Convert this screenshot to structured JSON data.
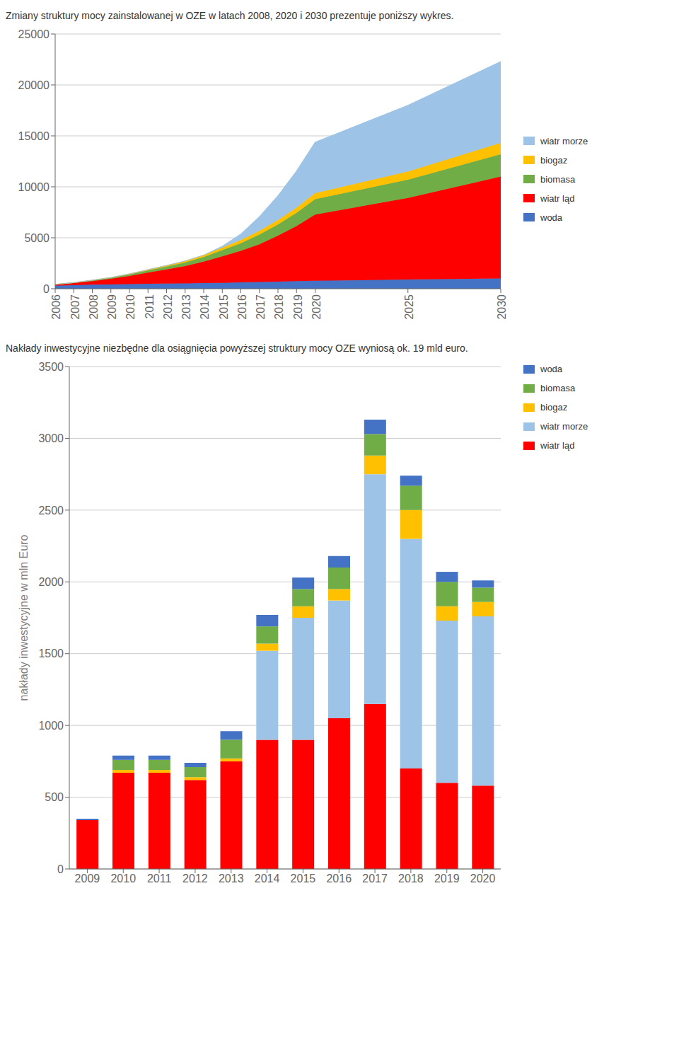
{
  "chart_data": [
    {
      "type": "area",
      "title": "Zmiany struktury mocy zainstalowanej w OZE w latach 2008, 2020 i 2030 prezentuje poniższy wykres.",
      "x": [
        2006,
        2007,
        2008,
        2009,
        2010,
        2011,
        2012,
        2013,
        2014,
        2015,
        2016,
        2017,
        2018,
        2019,
        2020,
        2025,
        2030
      ],
      "xlim": [
        2006,
        2030
      ],
      "xticks": [
        2006,
        2007,
        2008,
        2009,
        2010,
        2011,
        2012,
        2013,
        2014,
        2015,
        2016,
        2017,
        2018,
        2019,
        2020,
        2025,
        2030
      ],
      "ylim": [
        0,
        25000
      ],
      "yticks": [
        0,
        5000,
        10000,
        15000,
        20000,
        25000
      ],
      "grid": true,
      "stacked": true,
      "legend": "right",
      "series": [
        {
          "name": "woda",
          "color": "#4472C4",
          "values": [
            300,
            350,
            400,
            420,
            450,
            480,
            500,
            520,
            550,
            580,
            620,
            660,
            700,
            740,
            780,
            900,
            1000
          ]
        },
        {
          "name": "wiatr ląd",
          "color": "#FF0000",
          "values": [
            100,
            200,
            350,
            550,
            800,
            1100,
            1400,
            1700,
            2100,
            2600,
            3100,
            3700,
            4500,
            5400,
            6500,
            8000,
            10000
          ]
        },
        {
          "name": "biomasa",
          "color": "#70AD47",
          "values": [
            20,
            40,
            70,
            100,
            150,
            210,
            270,
            350,
            450,
            600,
            750,
            950,
            1100,
            1300,
            1500,
            1800,
            2200
          ]
        },
        {
          "name": "biogaz",
          "color": "#FFC000",
          "values": [
            5,
            10,
            20,
            30,
            50,
            80,
            110,
            150,
            190,
            240,
            300,
            370,
            440,
            520,
            600,
            800,
            1100
          ]
        },
        {
          "name": "wiatr morze",
          "color": "#9DC3E6",
          "values": [
            0,
            0,
            0,
            0,
            0,
            0,
            0,
            0,
            0,
            150,
            600,
            1400,
            2400,
            3600,
            5000,
            6500,
            8000
          ]
        }
      ]
    },
    {
      "type": "bar",
      "title": "Nakłady inwestycyjne niezbędne dla osiągnięcia powyższej struktury mocy OZE wyniosą ok. 19 mld euro.",
      "categories": [
        "2009",
        "2010",
        "2011",
        "2012",
        "2013",
        "2014",
        "2015",
        "2016",
        "2017",
        "2018",
        "2019",
        "2020"
      ],
      "ylabel": "nakłady inwestycyjne w mln Euro",
      "ylim": [
        0,
        3500
      ],
      "yticks": [
        0,
        500,
        1000,
        1500,
        2000,
        2500,
        3000,
        3500
      ],
      "grid": true,
      "stacked": true,
      "legend": "right",
      "series": [
        {
          "name": "wiatr ląd",
          "color": "#FF0000",
          "values": [
            340,
            670,
            670,
            620,
            750,
            900,
            900,
            1050,
            1150,
            700,
            600,
            580
          ]
        },
        {
          "name": "wiatr morze",
          "color": "#9DC3E6",
          "values": [
            0,
            0,
            0,
            0,
            0,
            620,
            850,
            820,
            1600,
            1600,
            1130,
            1180
          ]
        },
        {
          "name": "biogaz",
          "color": "#FFC000",
          "values": [
            0,
            20,
            20,
            20,
            20,
            50,
            80,
            80,
            130,
            200,
            100,
            100
          ]
        },
        {
          "name": "biomasa",
          "color": "#70AD47",
          "values": [
            0,
            70,
            70,
            70,
            130,
            120,
            120,
            150,
            150,
            170,
            170,
            100
          ]
        },
        {
          "name": "woda",
          "color": "#4472C4",
          "values": [
            10,
            30,
            30,
            30,
            60,
            80,
            80,
            80,
            100,
            70,
            70,
            50
          ]
        }
      ]
    }
  ]
}
